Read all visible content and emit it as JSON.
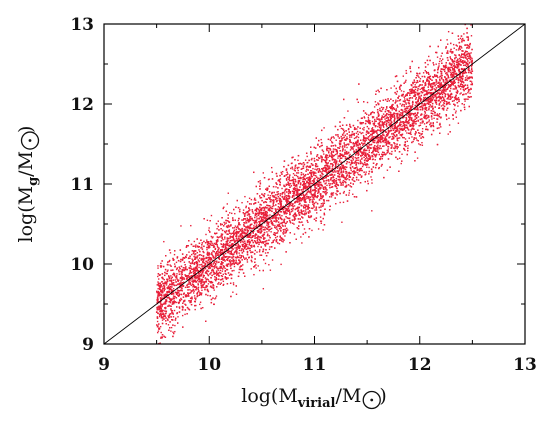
{
  "chart_data": {
    "type": "scatter",
    "title": "",
    "xlabel": {
      "prefix": "log(M",
      "sub": "virial",
      "mid": "/M",
      "suffix": ")"
    },
    "ylabel": {
      "prefix": "log(M",
      "sub": "g",
      "mid": "/M",
      "suffix": ")"
    },
    "xlim": [
      9,
      13
    ],
    "ylim": [
      9,
      13
    ],
    "xticks": [
      "9",
      "10",
      "11",
      "12",
      "13"
    ],
    "yticks": [
      "9",
      "10",
      "11",
      "12",
      "13"
    ],
    "grid": false,
    "reference_line": {
      "x": [
        9,
        13
      ],
      "y": [
        9,
        13
      ],
      "color": "#000000"
    },
    "series": [
      {
        "color": "#e8203a",
        "x_range": [
          9.5,
          12.5
        ],
        "relation": "y ≈ x",
        "scatter_band_dex": 0.35,
        "points": [
          [
            9.5,
            9.48
          ],
          [
            9.75,
            9.74
          ],
          [
            10.0,
            10.02
          ],
          [
            10.25,
            10.24
          ],
          [
            10.5,
            10.51
          ],
          [
            10.75,
            10.75
          ],
          [
            11.0,
            11.0
          ],
          [
            11.25,
            11.24
          ],
          [
            11.5,
            11.52
          ],
          [
            11.75,
            11.75
          ],
          [
            12.0,
            12.0
          ],
          [
            12.25,
            12.24
          ],
          [
            12.5,
            12.5
          ]
        ]
      }
    ]
  }
}
